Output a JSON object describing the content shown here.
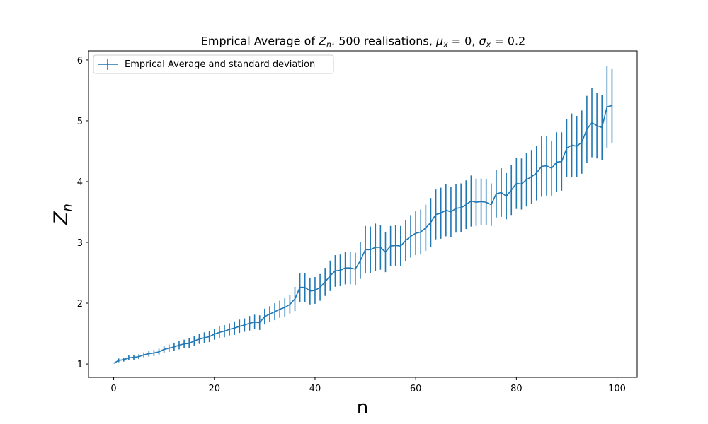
{
  "chart_data": {
    "type": "line",
    "title_parts": {
      "prefix": "Emprical Average of ",
      "z": "Z",
      "z_sub": "n",
      "middle": ". 500 realisations, ",
      "mu": "μ",
      "mu_sub": "x",
      "mu_val": " = 0, ",
      "sigma": "σ",
      "sigma_sub": "x",
      "sigma_val": " = 0.2"
    },
    "xlabel": "n",
    "ylabel": "Z",
    "ylabel_sub": "n",
    "xlim": [
      -5,
      104
    ],
    "ylim": [
      0.78,
      6.15
    ],
    "xticks": [
      0,
      20,
      40,
      60,
      80,
      100
    ],
    "yticks": [
      1,
      2,
      3,
      4,
      5,
      6
    ],
    "grid": false,
    "legend_position": "top-left",
    "colors": {
      "series": "#1f77b4",
      "axis": "#000000"
    },
    "series": [
      {
        "name": "Emprical Average and standard deviation",
        "x": [
          0,
          1,
          2,
          3,
          4,
          5,
          6,
          7,
          8,
          9,
          10,
          11,
          12,
          13,
          14,
          15,
          16,
          17,
          18,
          19,
          20,
          21,
          22,
          23,
          24,
          25,
          26,
          27,
          28,
          29,
          30,
          31,
          32,
          33,
          34,
          35,
          36,
          37,
          38,
          39,
          40,
          41,
          42,
          43,
          44,
          45,
          46,
          47,
          48,
          49,
          50,
          51,
          52,
          53,
          54,
          55,
          56,
          57,
          58,
          59,
          60,
          61,
          62,
          63,
          64,
          65,
          66,
          67,
          68,
          69,
          70,
          71,
          72,
          73,
          74,
          75,
          76,
          77,
          78,
          79,
          80,
          81,
          82,
          83,
          84,
          85,
          86,
          87,
          88,
          89,
          90,
          91,
          92,
          93,
          94,
          95,
          96,
          97,
          98,
          99
        ],
        "y": [
          1.01,
          1.06,
          1.07,
          1.1,
          1.11,
          1.12,
          1.15,
          1.17,
          1.18,
          1.2,
          1.24,
          1.26,
          1.28,
          1.31,
          1.33,
          1.34,
          1.38,
          1.41,
          1.43,
          1.45,
          1.49,
          1.52,
          1.54,
          1.57,
          1.59,
          1.62,
          1.64,
          1.67,
          1.69,
          1.68,
          1.78,
          1.82,
          1.86,
          1.9,
          1.93,
          1.98,
          2.07,
          2.26,
          2.26,
          2.2,
          2.21,
          2.26,
          2.35,
          2.45,
          2.53,
          2.54,
          2.58,
          2.58,
          2.56,
          2.7,
          2.88,
          2.88,
          2.92,
          2.92,
          2.84,
          2.94,
          2.95,
          2.94,
          3.03,
          3.1,
          3.15,
          3.17,
          3.24,
          3.33,
          3.46,
          3.48,
          3.53,
          3.5,
          3.56,
          3.57,
          3.62,
          3.68,
          3.66,
          3.67,
          3.66,
          3.62,
          3.8,
          3.82,
          3.76,
          3.86,
          3.97,
          3.96,
          4.03,
          4.08,
          4.14,
          4.25,
          4.26,
          4.22,
          4.32,
          4.33,
          4.55,
          4.6,
          4.58,
          4.65,
          4.86,
          4.97,
          4.92,
          4.89,
          5.23,
          5.25
        ],
        "err": [
          0.0,
          0.03,
          0.03,
          0.04,
          0.04,
          0.04,
          0.04,
          0.05,
          0.05,
          0.05,
          0.06,
          0.06,
          0.07,
          0.07,
          0.07,
          0.08,
          0.08,
          0.08,
          0.09,
          0.09,
          0.09,
          0.1,
          0.1,
          0.1,
          0.11,
          0.11,
          0.11,
          0.12,
          0.12,
          0.12,
          0.13,
          0.13,
          0.14,
          0.14,
          0.15,
          0.15,
          0.2,
          0.24,
          0.24,
          0.22,
          0.22,
          0.22,
          0.23,
          0.25,
          0.26,
          0.26,
          0.27,
          0.27,
          0.27,
          0.3,
          0.39,
          0.38,
          0.39,
          0.37,
          0.33,
          0.33,
          0.34,
          0.33,
          0.34,
          0.35,
          0.36,
          0.37,
          0.38,
          0.4,
          0.41,
          0.42,
          0.43,
          0.41,
          0.4,
          0.4,
          0.4,
          0.42,
          0.39,
          0.38,
          0.38,
          0.35,
          0.39,
          0.4,
          0.38,
          0.41,
          0.42,
          0.42,
          0.44,
          0.44,
          0.45,
          0.5,
          0.49,
          0.45,
          0.49,
          0.48,
          0.48,
          0.52,
          0.5,
          0.52,
          0.55,
          0.57,
          0.54,
          0.53,
          0.67,
          0.61
        ]
      }
    ]
  }
}
